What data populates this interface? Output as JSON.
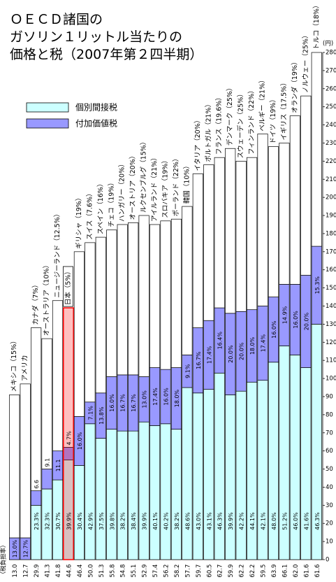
{
  "chart_data": {
    "type": "stacked_bar",
    "title": [
      "ＯＥＣＤ諸国の",
      "ガソリン１リットル当たりの",
      "価格と税（2007年第２四半期）"
    ],
    "y_unit": "(円)",
    "tax_burden_label": "（税負担率）",
    "categories": [
      "メキシコ（15%）",
      "アメリカ",
      "カナダ（7%）",
      "オーストラリア（10%）",
      "ニュージーランド（12.5%）",
      "日本（5%）",
      "ギリシャ（19%）",
      "スイス（7.6%）",
      "スペイン（16%）",
      "チェコ（19%）",
      "ハンガリー（20%）",
      "オーストリア（20%）",
      "ルクセンブルグ（15%）",
      "アイルランド（21%）",
      "スロバキア（19%）",
      "ポーランド（22%）",
      "韓国（10%）",
      "イタリア（20%）",
      "ポルトガル（21%）",
      "フランス（19.6%）",
      "デンマーク（25%）",
      "スウェーデン（25%）",
      "フィンランド（22%）",
      "ベルギー（21%）",
      "ドイツ（19%）",
      "イギリス（17.5%）",
      "オランダ（19%）",
      "ノルウェー（25%）",
      "トルコ（18%）"
    ],
    "series": [
      {
        "name": "個別間接税",
        "color": "#ccffff",
        "values": [
          0,
          0,
          30,
          39,
          44,
          55,
          52,
          75,
          67,
          72,
          71,
          71,
          76,
          74,
          75,
          72,
          95,
          92,
          94,
          103,
          91,
          93,
          98,
          99,
          109,
          118,
          113,
          106,
          130
        ],
        "value_labels": [
          null,
          null,
          "23.3%",
          "32.3%",
          "30.7%",
          "39.9%",
          "30.4%",
          "42.9%",
          "37.5%",
          "39.8%",
          "38.2%",
          "38.4%",
          "39.9%",
          "40.1%",
          "40.2%",
          "38.2%",
          "48.6%",
          "43.0%",
          "43.1%",
          "46.3%",
          "39.9%",
          "42.2%",
          "44.1%",
          "42.1%",
          "48.0%",
          "51.2%",
          "46.0%",
          "41.6%",
          "46.3%"
        ]
      },
      {
        "name": "付加価値税",
        "color": "#9999ff",
        "values": [
          12,
          12,
          8,
          11,
          16,
          7,
          27,
          12,
          25,
          29,
          31,
          31,
          25,
          32,
          30,
          34,
          18,
          36,
          38,
          36,
          45,
          44,
          40,
          41,
          36,
          34,
          39,
          51,
          43
        ],
        "value_labels": [
          "13.0%",
          "12.7%",
          "6.6",
          "9.1",
          "11.1",
          "4.7%",
          "16.0%",
          "7.1%",
          "13.8%",
          "16.0%",
          "16.7%",
          "16.7%",
          "13.0%",
          "17.4%",
          "16.0%",
          "18.0%",
          "9.1%",
          "16.7%",
          "17.4%",
          "16.4%",
          "20.0%",
          "20.0%",
          "18.0%",
          "17.4%",
          "16.0%",
          "14.9%",
          "16.0%",
          "20.0%",
          "15.3%"
        ]
      },
      {
        "color": "#ffffff",
        "values": [
          79,
          85,
          90,
          72,
          83,
          77,
          91,
          88,
          86,
          81,
          83,
          84,
          89,
          79,
          82,
          82,
          82,
          85,
          86,
          83,
          91,
          83,
          84,
          95,
          83,
          78,
          93,
          99,
          107
        ]
      }
    ],
    "tax_burden_labels": [
      "13.0",
      "12.7",
      "29.9",
      "41.3",
      "41.8",
      "44.6",
      "46.4",
      "50.0",
      "51.3",
      "55.8",
      "54.8",
      "55.1",
      "52.9",
      "57.4",
      "56.2",
      "58.2",
      "57.7",
      "59.7",
      "60.5",
      "62.7",
      "59.9",
      "62.2",
      "62.2",
      "59.5",
      "63.9",
      "66.1",
      "62.0",
      "61.6",
      "61.6"
    ],
    "highlight": 5,
    "highlight_color": "#ff0000",
    "ylim": [
      0,
      280
    ],
    "yticks": [
      0,
      10,
      20,
      30,
      40,
      50,
      60,
      70,
      80,
      90,
      100,
      110,
      120,
      130,
      140,
      150,
      160,
      170,
      180,
      190,
      200,
      210,
      220,
      230,
      240,
      250,
      260,
      270,
      280
    ]
  }
}
